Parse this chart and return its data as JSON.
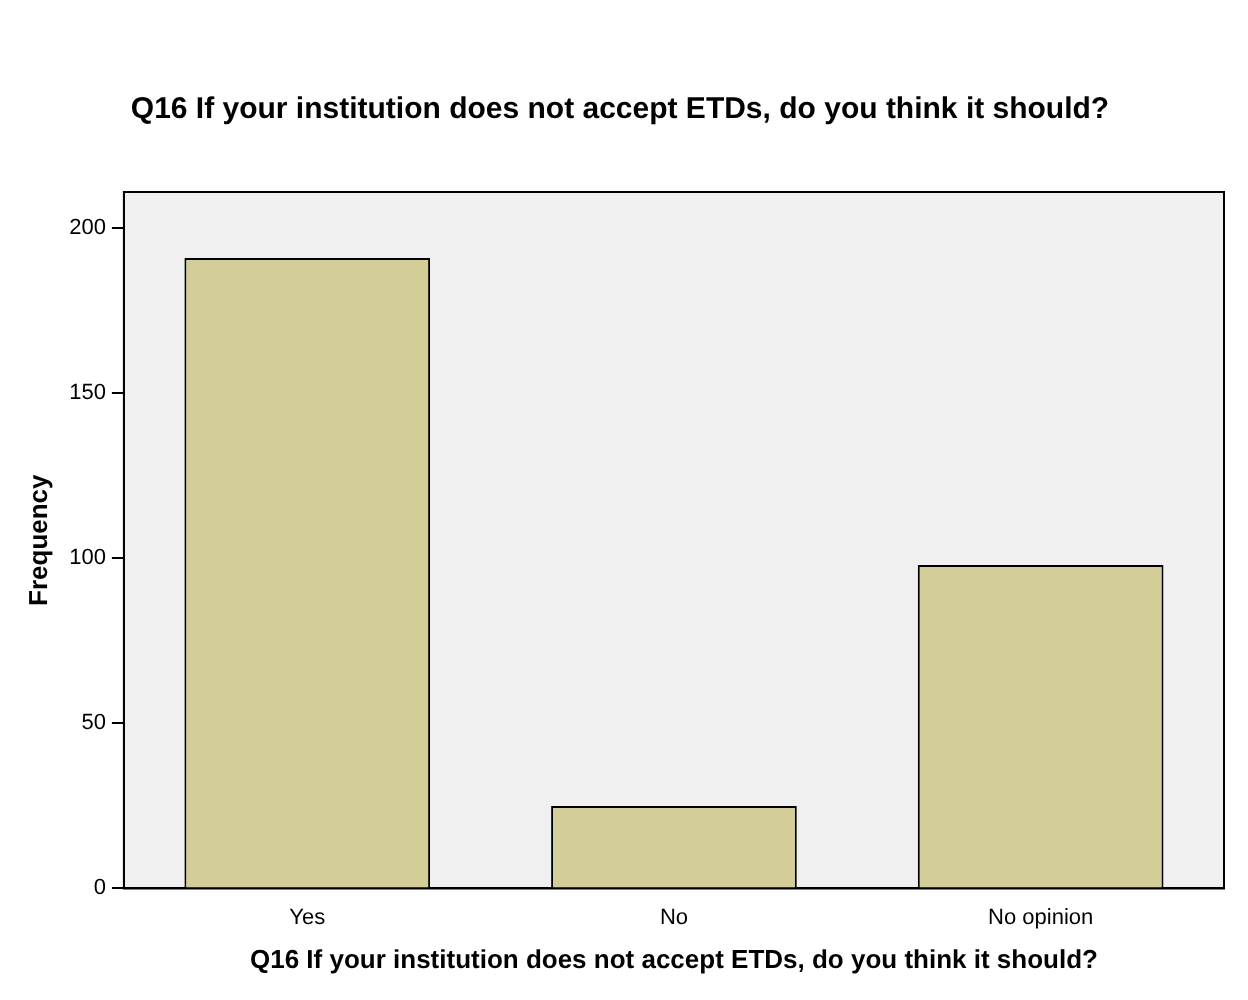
{
  "chart_data": {
    "type": "bar",
    "title": "Q16 If your institution does not accept ETDs, do you think it should?",
    "xlabel": "Q16 If your institution does not accept ETDs, do you think it should?",
    "ylabel": "Frequency",
    "categories": [
      "Yes",
      "No",
      "No opinion"
    ],
    "values": [
      191,
      25,
      98
    ],
    "color": "#d3ce97",
    "ylim": [
      0,
      211
    ],
    "yticks": [
      0,
      50,
      100,
      150,
      200
    ],
    "grid": false,
    "legend": false
  }
}
